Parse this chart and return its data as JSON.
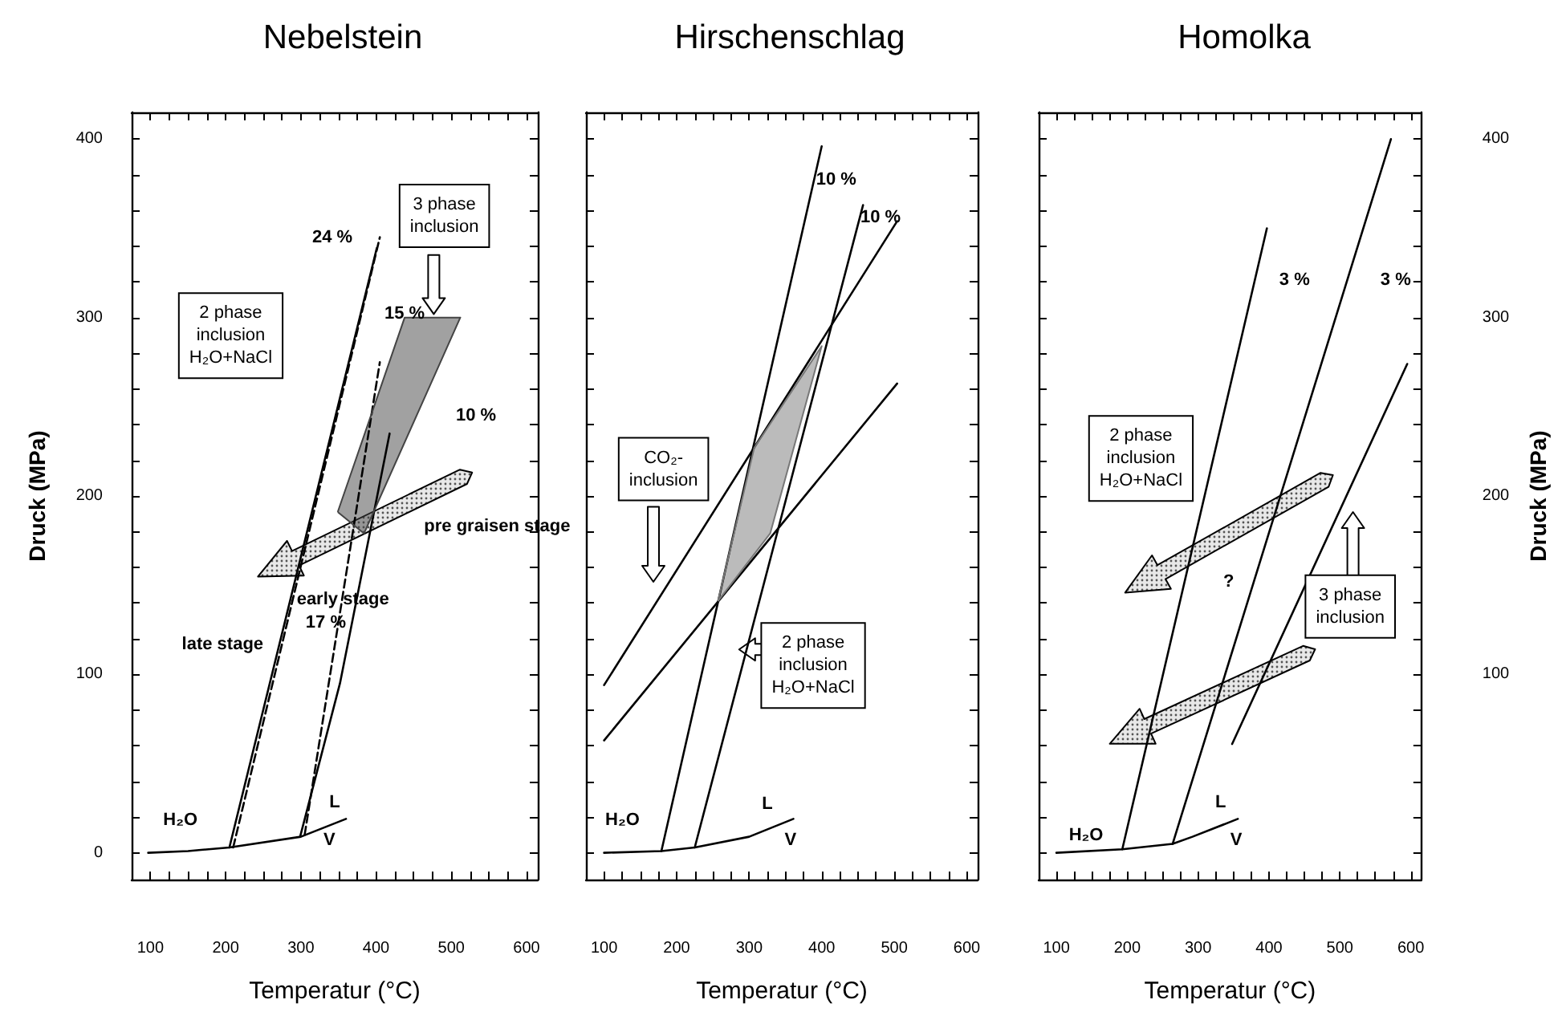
{
  "chart_data": [
    {
      "type": "line",
      "title": "Nebelstein",
      "xlabel": "Temperatur (°C)",
      "ylabel": "Druck (MPa)",
      "xlim": [
        75,
        615
      ],
      "ylim": [
        -15,
        415
      ],
      "xticks": [
        100,
        {
          "value": 125,
          "label": null
        },
        {
          "value": 150,
          "label": null
        },
        {
          "value": 175,
          "label": null
        },
        200,
        {
          "value": 225,
          "label": null
        },
        {
          "value": 250,
          "label": null
        },
        {
          "value": 275,
          "label": null
        },
        300,
        {
          "value": 325,
          "label": null
        },
        {
          "value": 350,
          "label": null
        },
        {
          "value": 375,
          "label": null
        },
        400,
        {
          "value": 425,
          "label": null
        },
        {
          "value": 450,
          "label": null
        },
        {
          "value": 475,
          "label": null
        },
        500,
        {
          "value": 525,
          "label": null
        },
        {
          "value": 550,
          "label": null
        },
        {
          "value": 575,
          "label": null
        },
        600
      ],
      "yticks": [
        0,
        {
          "value": 20,
          "label": null
        },
        {
          "value": 40,
          "label": null
        },
        {
          "value": 60,
          "label": null
        },
        {
          "value": 80,
          "label": null
        },
        100,
        {
          "value": 120,
          "label": null
        },
        {
          "value": 140,
          "label": null
        },
        {
          "value": 160,
          "label": null
        },
        {
          "value": 180,
          "label": null
        },
        200,
        {
          "value": 220,
          "label": null
        },
        {
          "value": 240,
          "label": null
        },
        {
          "value": 260,
          "label": null
        },
        {
          "value": 280,
          "label": null
        },
        300,
        {
          "value": 320,
          "label": null
        },
        {
          "value": 340,
          "label": null
        },
        {
          "value": 360,
          "label": null
        },
        {
          "value": 380,
          "label": null
        },
        400
      ],
      "series": [
        {
          "color": "#000000",
          "x": [
            97,
            150,
            205,
            300,
            360
          ],
          "values": [
            0,
            1,
            3,
            9,
            19
          ]
        },
        {
          "color": "#000000",
          "x": [
            205,
            401
          ],
          "values": [
            3,
            339
          ]
        },
        {
          "color": "#000000",
          "x": [
            210,
            405
          ],
          "values": [
            3,
            345
          ],
          "line_style": "dashed"
        },
        {
          "color": "#000000",
          "x": [
            299,
            352,
            418
          ],
          "values": [
            9,
            95,
            235
          ]
        },
        {
          "color": "#000000",
          "x": [
            305,
            405
          ],
          "values": [
            10,
            275
          ],
          "line_style": "dashed"
        },
        {
          "type": "area",
          "color": "#444444",
          "x": [
            349,
            384,
            512,
            438,
            349
          ],
          "values": [
            191,
            179,
            300,
            300,
            191
          ]
        }
      ],
      "annotations": [
        "24 %",
        "15 %",
        "10 %",
        "17 %",
        "3 phase\ninclusion",
        "2 phase\ninclusion\nH₂O+NaCl",
        "pre graisen stage",
        "early stage",
        "late stage",
        "H₂O",
        "L",
        "V"
      ]
    },
    {
      "type": "line",
      "title": "Hirschenschlag",
      "xlabel": "Temperatur (°C)",
      "tick_labels": "x",
      "xlim": [
        75,
        615
      ],
      "ylim": [
        -15,
        415
      ],
      "xticks": [
        100,
        {
          "value": 125,
          "label": null
        },
        {
          "value": 150,
          "label": null
        },
        {
          "value": 175,
          "label": null
        },
        200,
        {
          "value": 225,
          "label": null
        },
        {
          "value": 250,
          "label": null
        },
        {
          "value": 275,
          "label": null
        },
        300,
        {
          "value": 325,
          "label": null
        },
        {
          "value": 350,
          "label": null
        },
        {
          "value": 375,
          "label": null
        },
        400,
        {
          "value": 425,
          "label": null
        },
        {
          "value": 450,
          "label": null
        },
        {
          "value": 475,
          "label": null
        },
        500,
        {
          "value": 525,
          "label": null
        },
        {
          "value": 550,
          "label": null
        },
        {
          "value": 575,
          "label": null
        },
        600
      ],
      "yticks": [
        0,
        20,
        40,
        60,
        80,
        100,
        120,
        140,
        160,
        180,
        200,
        220,
        240,
        260,
        280,
        300,
        320,
        340,
        360,
        380,
        400
      ],
      "series": [
        {
          "color": "#000000",
          "x": [
            100,
            179,
            225,
            300,
            361
          ],
          "values": [
            0,
            1,
            3,
            9,
            19
          ]
        },
        {
          "color": "#000000",
          "x": [
            179,
            400
          ],
          "values": [
            1,
            396
          ]
        },
        {
          "color": "#000000",
          "x": [
            225,
            457
          ],
          "values": [
            3,
            363
          ]
        },
        {
          "color": "#000000",
          "x": [
            100,
            504
          ],
          "values": [
            94,
            354
          ]
        },
        {
          "color": "#000000",
          "x": [
            100,
            504
          ],
          "values": [
            63,
            263
          ]
        },
        {
          "type": "area",
          "color": "#777777",
          "x": [
            257,
            329,
            400,
            307,
            257
          ],
          "values": [
            141,
            179,
            284,
            227,
            141
          ]
        }
      ],
      "annotations": [
        "10 %",
        "10 %",
        "CO₂-\ninclusion",
        "2 phase\ninclusion\nH₂O+NaCl",
        "H₂O",
        "L",
        "V"
      ]
    },
    {
      "type": "line",
      "title": "Homolka",
      "xlabel": "Temperatur (°C)",
      "y2label": "Druck (MPa)",
      "xlim": [
        75,
        615
      ],
      "y2lim": [
        -15,
        415
      ],
      "xticks": [
        100,
        {
          "value": 125,
          "label": null
        },
        {
          "value": 150,
          "label": null
        },
        {
          "value": 175,
          "label": null
        },
        200,
        {
          "value": 225,
          "label": null
        },
        {
          "value": 250,
          "label": null
        },
        {
          "value": 275,
          "label": null
        },
        300,
        {
          "value": 325,
          "label": null
        },
        {
          "value": 350,
          "label": null
        },
        {
          "value": 375,
          "label": null
        },
        400,
        {
          "value": 425,
          "label": null
        },
        {
          "value": 450,
          "label": null
        },
        {
          "value": 475,
          "label": null
        },
        500,
        {
          "value": 525,
          "label": null
        },
        {
          "value": 550,
          "label": null
        },
        {
          "value": 575,
          "label": null
        },
        600
      ],
      "y2ticks": [
        {
          "value": 0,
          "label": null
        },
        {
          "value": 20,
          "label": null
        },
        {
          "value": 40,
          "label": null
        },
        {
          "value": 60,
          "label": null
        },
        {
          "value": 80,
          "label": null
        },
        100,
        {
          "value": 120,
          "label": null
        },
        {
          "value": 140,
          "label": null
        },
        {
          "value": 160,
          "label": null
        },
        {
          "value": 180,
          "label": null
        },
        200,
        {
          "value": 220,
          "label": null
        },
        {
          "value": 240,
          "label": null
        },
        {
          "value": 260,
          "label": null
        },
        {
          "value": 280,
          "label": null
        },
        300,
        {
          "value": 320,
          "label": null
        },
        {
          "value": 340,
          "label": null
        },
        {
          "value": 360,
          "label": null
        },
        {
          "value": 380,
          "label": null
        },
        400
      ],
      "series": [
        {
          "color": "#000000",
          "axis": "y2",
          "x": [
            100,
            193,
            264,
            292,
            356
          ],
          "values": [
            0,
            2,
            5,
            9,
            19
          ]
        },
        {
          "color": "#000000",
          "axis": "y2",
          "x": [
            193,
            397
          ],
          "values": [
            2,
            350
          ]
        },
        {
          "color": "#000000",
          "axis": "y2",
          "x": [
            264,
            572
          ],
          "values": [
            5,
            400
          ]
        },
        {
          "color": "#000000",
          "axis": "y2",
          "x": [
            348,
            595
          ],
          "values": [
            61,
            274
          ]
        }
      ],
      "annotations": [
        "3 %",
        "3 %",
        "2 phase\ninclusion\nH₂O+NaCl",
        "?",
        "3 phase\ninclusion",
        "H₂O",
        "L",
        "V"
      ]
    }
  ]
}
